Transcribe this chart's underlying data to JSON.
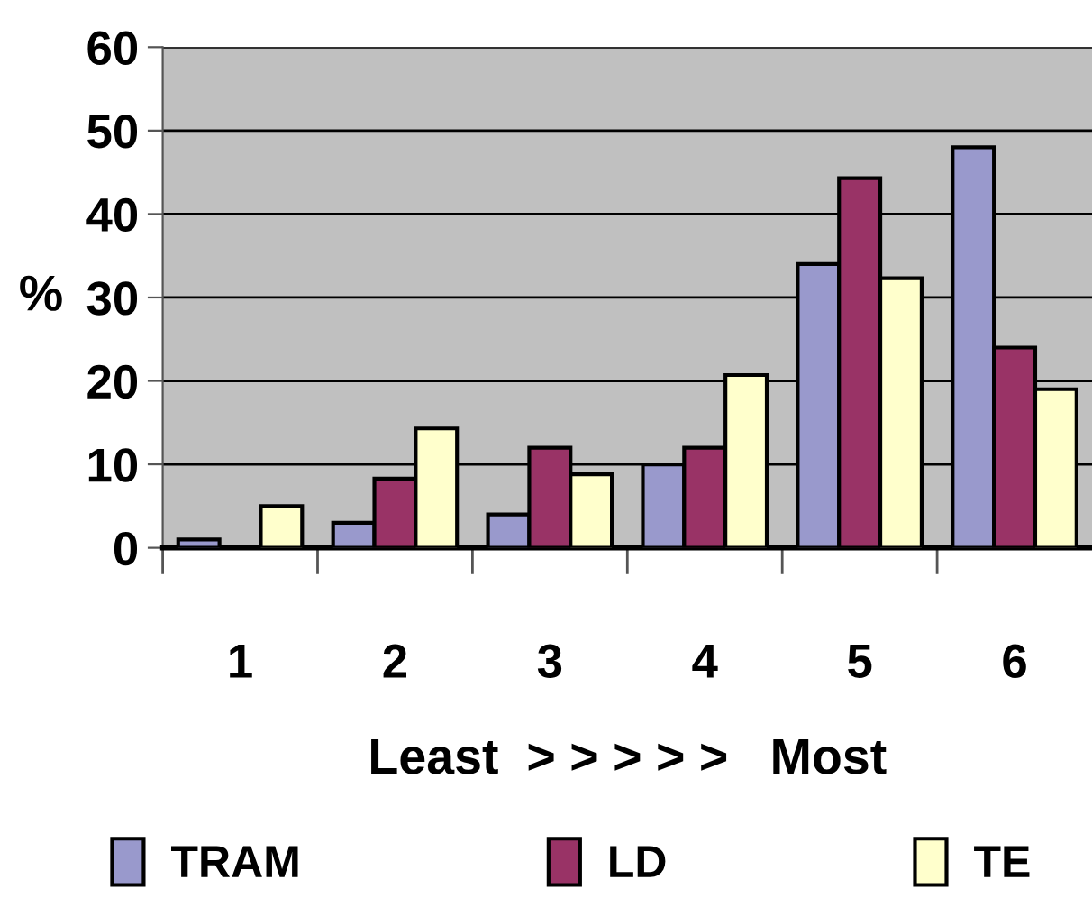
{
  "chart_data": {
    "type": "bar",
    "ylabel": "%",
    "xlabel": "Least  > > > > >   Most",
    "categories": [
      "1",
      "2",
      "3",
      "4",
      "5",
      "6"
    ],
    "series": [
      {
        "name": "TRAM",
        "color": "#9999cc",
        "values": [
          1,
          3,
          4,
          10,
          34,
          48
        ]
      },
      {
        "name": "LD",
        "color": "#993366",
        "values": [
          null,
          8.3,
          12,
          12,
          44.3,
          24
        ]
      },
      {
        "name": "TE",
        "color": "#ffffcc",
        "values": [
          5,
          14.3,
          8.8,
          20.7,
          32.3,
          19
        ]
      }
    ],
    "ylim": [
      0,
      60
    ],
    "yticks": [
      0,
      10,
      20,
      30,
      40,
      50,
      60
    ],
    "grid": "y",
    "legend": "bottom"
  }
}
